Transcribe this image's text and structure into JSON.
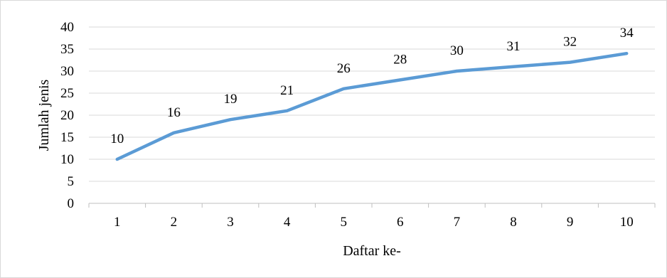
{
  "chart_data": {
    "type": "line",
    "title": "",
    "xlabel": "Daftar ke-",
    "ylabel": "Jumlah jenis",
    "categories": [
      "1",
      "2",
      "3",
      "4",
      "5",
      "6",
      "7",
      "8",
      "9",
      "10"
    ],
    "series": [
      {
        "values": [
          10,
          16,
          19,
          21,
          26,
          28,
          30,
          31,
          32,
          34
        ],
        "color": "#5b9bd5"
      }
    ],
    "ylim": [
      0,
      40
    ],
    "yticks": [
      0,
      5,
      10,
      15,
      20,
      25,
      30,
      35,
      40
    ],
    "grid": true,
    "data_labels": true,
    "legend": "none"
  }
}
